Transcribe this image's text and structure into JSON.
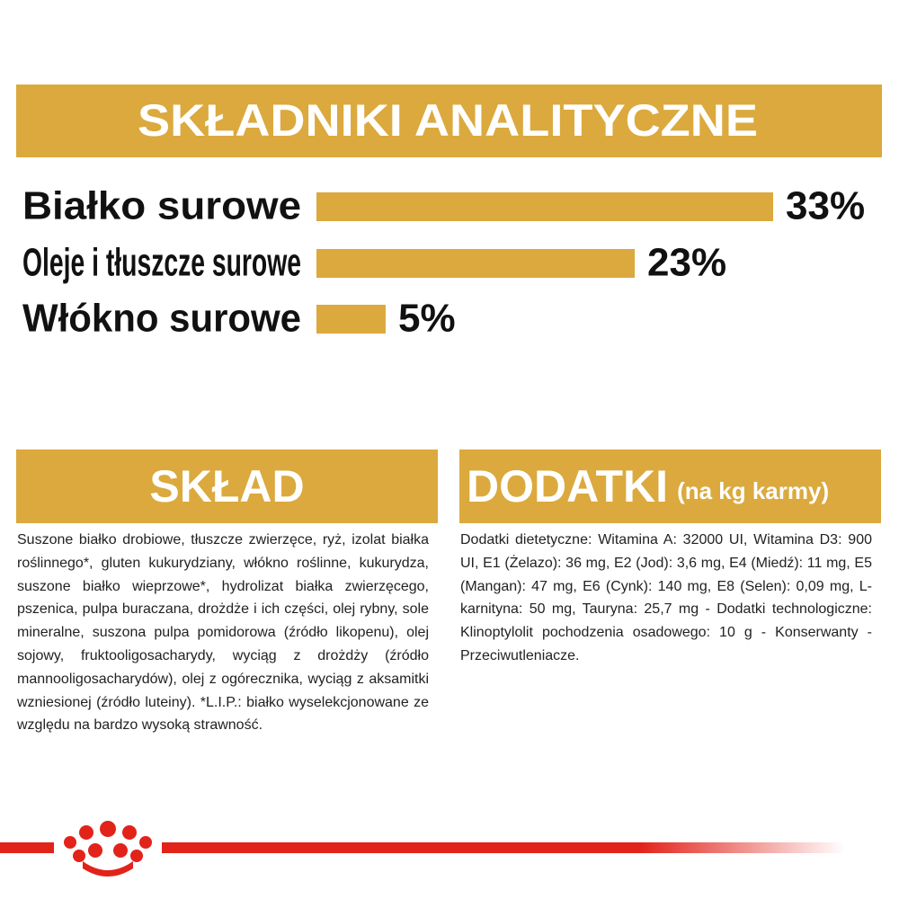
{
  "chart_data": {
    "type": "bar",
    "orientation": "horizontal",
    "title": "SKŁADNIKI ANALITYCZNE",
    "categories": [
      "Białko surowe",
      "Oleje i tłuszcze surowe",
      "Włókno surowe"
    ],
    "values": [
      33,
      23,
      5
    ],
    "value_labels": [
      "33%",
      "23%",
      "5%"
    ],
    "color": "#dba93d"
  },
  "sklad": {
    "title": "SKŁAD",
    "text": "Suszone białko drobiowe, tłuszcze zwierzęce, ryż, izolat białka roślinnego*, gluten kukurydziany, włókno roślinne, kukurydza, suszone białko wieprzowe*, hydrolizat białka zwierzęcego, pszenica, pulpa buraczana, drożdże i ich części, olej rybny, sole mineralne, suszona pulpa pomidorowa (źródło likopenu), olej sojowy, fruktooligosacharydy, wyciąg z drożdży (źródło mannooligosacharydów), olej z ogórecznika, wyciąg z aksamitki wzniesionej (źródło luteiny). *L.I.P.: białko wyselekcjonowane ze względu na bardzo wysoką strawność."
  },
  "dodatki": {
    "title": "DODATKI",
    "subtitle": "(na kg karmy)",
    "text": "Dodatki dietetyczne: Witamina A: 32000 UI, Witamina D3: 900 UI, E1 (Żelazo): 36 mg, E2 (Jod): 3,6 mg, E4 (Miedź): 11 mg, E5 (Mangan): 47 mg, E6 (Cynk): 140 mg, E8 (Selen): 0,09 mg, L-karnityna: 50 mg, Tauryna: 25,7 mg - Dodatki technologiczne: Klinoptylolit pochodzenia osadowego: 10 g - Konserwanty - Przeciwutleniacze."
  }
}
